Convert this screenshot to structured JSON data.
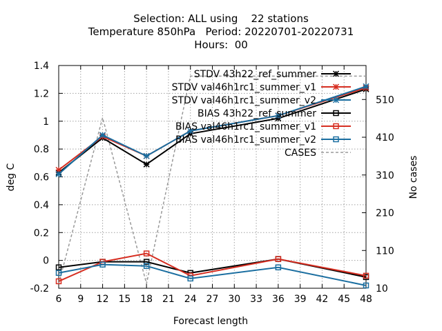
{
  "chart_data": {
    "type": "line",
    "title_lines": [
      "Selection: ALL using    22 stations",
      "Temperature 850hPa   Period: 20220701-20220731",
      "Hours:  00"
    ],
    "xlabel": "Forecast length",
    "ylabel": "deg C",
    "y2label": "No cases",
    "xlim": [
      6,
      48
    ],
    "ylim": [
      -0.2,
      1.4
    ],
    "y2lim": [
      10,
      600
    ],
    "xticks": [
      6,
      9,
      12,
      15,
      18,
      21,
      24,
      27,
      30,
      33,
      36,
      39,
      42,
      45,
      48
    ],
    "yticks": [
      "-0.2",
      "0",
      "0.2",
      "0.4",
      "0.6",
      "0.8",
      "1",
      "1.2",
      "1.4"
    ],
    "y2ticks": [
      10,
      110,
      210,
      310,
      410,
      510
    ],
    "grid": true,
    "legend_position": "top-right",
    "x": [
      6,
      12,
      18,
      24,
      36,
      48
    ],
    "series": [
      {
        "name": "STDV 43h22_ref_summer",
        "axis": "y",
        "color": "#000000",
        "marker": "star",
        "dashed": false,
        "values": [
          0.63,
          0.88,
          0.69,
          0.91,
          1.02,
          1.23
        ]
      },
      {
        "name": "STDV val46h1rc1_summer_v1",
        "axis": "y",
        "color": "#d62d20",
        "marker": "star",
        "dashed": false,
        "values": [
          0.65,
          0.89,
          0.75,
          0.93,
          1.04,
          1.24
        ]
      },
      {
        "name": "STDV val46h1rc1_summer_v2",
        "axis": "y",
        "color": "#1a6ea0",
        "marker": "star",
        "dashed": false,
        "values": [
          0.62,
          0.9,
          0.75,
          0.93,
          1.04,
          1.25
        ]
      },
      {
        "name": "BIAS 43h22_ref_summer",
        "axis": "y",
        "color": "#000000",
        "marker": "square",
        "dashed": false,
        "values": [
          -0.05,
          -0.01,
          -0.01,
          -0.09,
          0.01,
          -0.12
        ]
      },
      {
        "name": "BIAS val46h1rc1_summer_v1",
        "axis": "y",
        "color": "#d62d20",
        "marker": "square",
        "dashed": false,
        "values": [
          -0.15,
          -0.01,
          0.05,
          -0.11,
          0.01,
          -0.11
        ]
      },
      {
        "name": "BIAS val46h1rc1_summer_v2",
        "axis": "y",
        "color": "#1a6ea0",
        "marker": "square",
        "dashed": false,
        "values": [
          -0.09,
          -0.03,
          -0.04,
          -0.13,
          -0.05,
          -0.18
        ]
      },
      {
        "name": "CASES",
        "axis": "y2",
        "color": "#999999",
        "marker": "none",
        "dashed": true,
        "values": [
          22,
          462,
          22,
          572,
          572,
          572
        ]
      }
    ]
  }
}
